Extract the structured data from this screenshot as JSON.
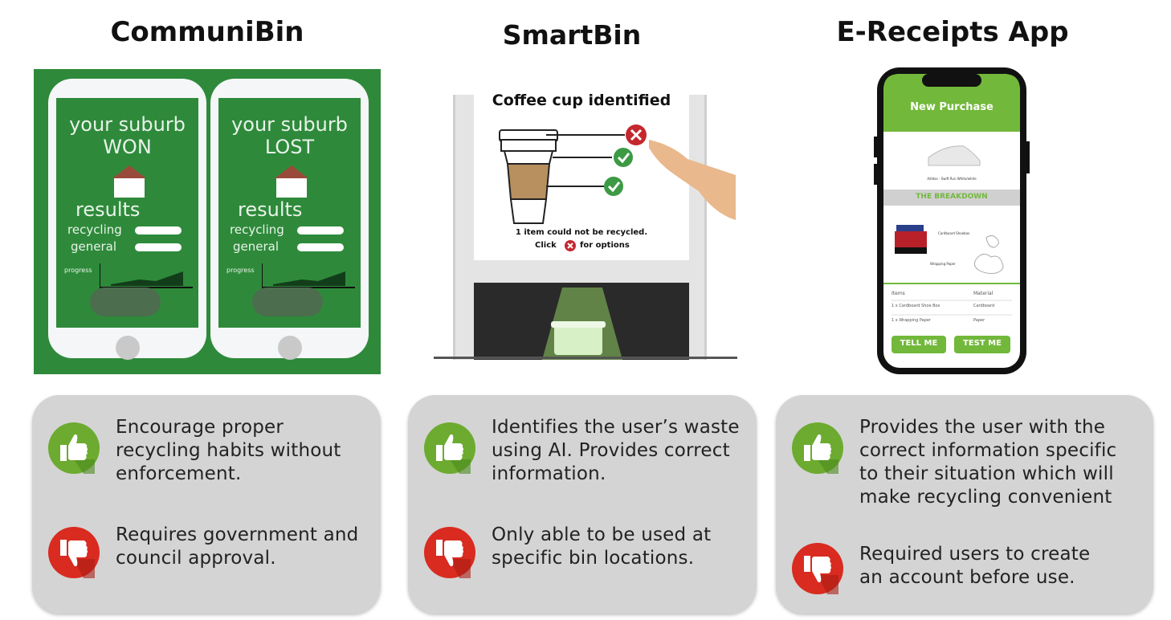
{
  "columns": [
    {
      "title": "CommuniBin",
      "illustration": {
        "phones": [
          {
            "line1": "your suburb",
            "line2": "WON",
            "results": "results",
            "recycling": "recycling",
            "general": "general",
            "progress": "progress"
          },
          {
            "line1": "your suburb",
            "line2": "LOST",
            "results": "results",
            "recycling": "recycling",
            "general": "general",
            "progress": "progress"
          }
        ]
      },
      "pro": "Encourage proper recycling habits without enforcement.",
      "con": "Requires government and council approval."
    },
    {
      "title": "SmartBin",
      "illustration": {
        "heading": "Coffee cup identified",
        "note_line1": "1 item could not be recycled.",
        "note_click": "Click",
        "note_options": "for options"
      },
      "pro": "Identifies the user’s waste using AI. Provides correct information.",
      "con": "Only able to be used at specific bin locations."
    },
    {
      "title": "E-Receipts App",
      "illustration": {
        "header": "New Purchase",
        "product": "Adidas - Swift Run White/white",
        "breakdown": "THE BREAKDOWN",
        "item1": "Cardboard Shoebox",
        "item2": "Wrapping Paper",
        "table_col1": "Items",
        "table_col2": "Material",
        "row1_item": "1 x Cardboard Shoe Box",
        "row1_mat": "Cardboard",
        "row2_item": "1 x Wrapping Paper",
        "row2_mat": "Paper",
        "btn1": "TELL ME",
        "btn2": "TEST ME"
      },
      "pro": "Provides the user with the correct information specific to their situation which will make recycling convenient",
      "con": "Required users to create an account before use."
    }
  ],
  "icons": {
    "pro": "thumbs-up-icon",
    "con": "thumbs-down-icon"
  },
  "colors": {
    "pro": "#6cab2f",
    "con": "#d92b20",
    "card": "#d4d4d4",
    "panel_green": "#2e8a3a",
    "app_green": "#72b83a"
  }
}
